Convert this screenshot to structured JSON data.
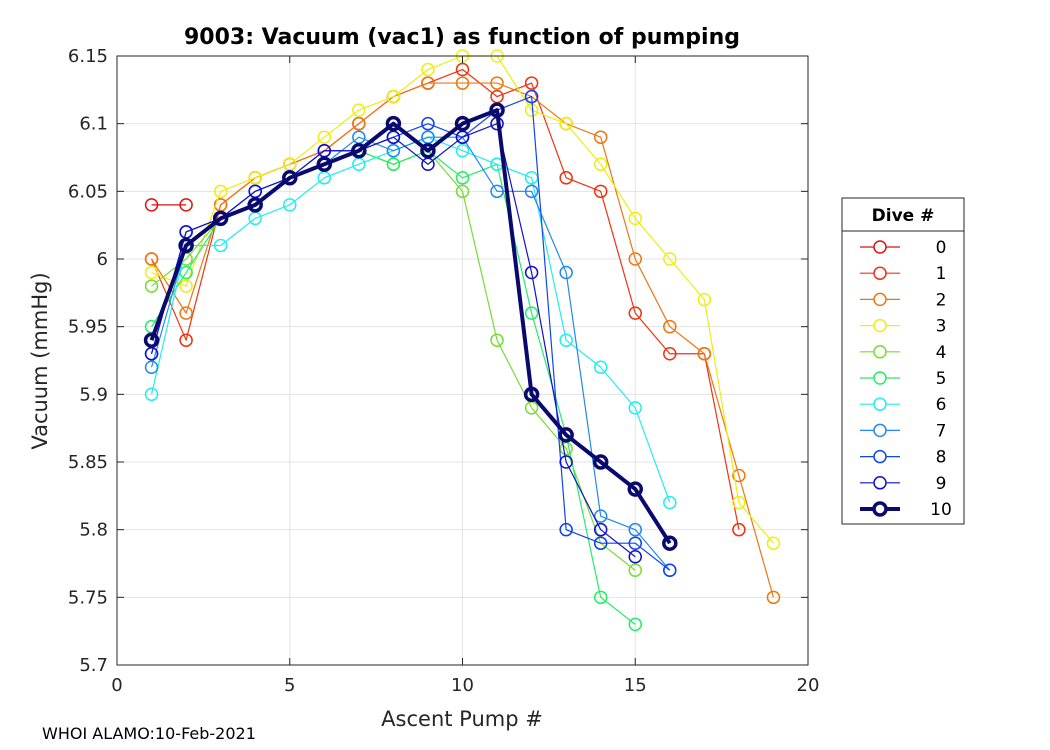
{
  "footer": "WHOI ALAMO:10-Feb-2021",
  "chart_data": {
    "type": "line",
    "title": "9003: Vacuum (vac1) as function of pumping",
    "xlabel": "Ascent Pump #",
    "ylabel": "Vacuum (mmHg)",
    "xlim": [
      0,
      20
    ],
    "ylim": [
      5.7,
      6.15
    ],
    "xticks": [
      0,
      5,
      10,
      15,
      20
    ],
    "xtick_labels": [
      "0",
      "5",
      "10",
      "15",
      "20"
    ],
    "yticks": [
      5.7,
      5.75,
      5.8,
      5.85,
      5.9,
      5.95,
      6.0,
      6.05,
      6.1,
      6.15
    ],
    "ytick_labels": [
      "5.7",
      "5.75",
      "5.8",
      "5.85",
      "5.9",
      "5.95",
      "6",
      "6.05",
      "6.1",
      "6.15"
    ],
    "grid": true,
    "legend_title": "Dive #",
    "legend_position": "outside-right",
    "series": [
      {
        "name": "0",
        "color": "#dd1111",
        "x": [
          1,
          2
        ],
        "y": [
          6.04,
          6.04
        ]
      },
      {
        "name": "1",
        "color": "#ee3311",
        "x": [
          1,
          2,
          3,
          4,
          5,
          6,
          7,
          8,
          9,
          10,
          11,
          12,
          13,
          14,
          15,
          16,
          17,
          18
        ],
        "y": [
          6.0,
          5.94,
          6.04,
          6.06,
          6.07,
          6.08,
          6.1,
          6.12,
          6.13,
          6.14,
          6.12,
          6.13,
          6.06,
          6.05,
          5.96,
          5.93,
          5.93,
          5.8
        ]
      },
      {
        "name": "2",
        "color": "#ee7711",
        "x": [
          1,
          2,
          3,
          4,
          5,
          6,
          7,
          8,
          9,
          10,
          11,
          12,
          13,
          14,
          15,
          16,
          17,
          18,
          19
        ],
        "y": [
          6.0,
          5.96,
          6.04,
          6.06,
          6.07,
          6.08,
          6.1,
          6.12,
          6.13,
          6.13,
          6.13,
          6.12,
          6.1,
          6.09,
          6.0,
          5.95,
          5.93,
          5.84,
          5.75
        ]
      },
      {
        "name": "3",
        "color": "#eeee11",
        "x": [
          1,
          2,
          3,
          4,
          5,
          6,
          7,
          8,
          9,
          10,
          11,
          12,
          13,
          14,
          15,
          16,
          17,
          18,
          19
        ],
        "y": [
          5.99,
          5.98,
          6.05,
          6.06,
          6.07,
          6.09,
          6.11,
          6.12,
          6.14,
          6.15,
          6.15,
          6.11,
          6.1,
          6.07,
          6.03,
          6.0,
          5.97,
          5.82,
          5.79
        ]
      },
      {
        "name": "4",
        "color": "#77dd33",
        "x": [
          1,
          2,
          3,
          4,
          5,
          6,
          7,
          8,
          9,
          10,
          11,
          12,
          13,
          14,
          15
        ],
        "y": [
          5.98,
          6.0,
          6.03,
          6.04,
          6.06,
          6.07,
          6.08,
          6.07,
          6.08,
          6.05,
          5.94,
          5.89,
          5.86,
          5.79,
          5.77
        ]
      },
      {
        "name": "5",
        "color": "#22ee66",
        "x": [
          1,
          2,
          3,
          4,
          5,
          6,
          7,
          8,
          9,
          10,
          11,
          12,
          13,
          14,
          15
        ],
        "y": [
          5.95,
          5.99,
          6.03,
          6.04,
          6.06,
          6.07,
          6.08,
          6.07,
          6.08,
          6.06,
          6.07,
          5.96,
          5.87,
          5.75,
          5.73
        ]
      },
      {
        "name": "6",
        "color": "#22eeee",
        "x": [
          1,
          2,
          3,
          4,
          5,
          6,
          7,
          8,
          9,
          10,
          11,
          12,
          13,
          14,
          15,
          16
        ],
        "y": [
          5.9,
          6.01,
          6.01,
          6.03,
          6.04,
          6.06,
          6.07,
          6.08,
          6.09,
          6.08,
          6.07,
          6.06,
          5.94,
          5.92,
          5.89,
          5.82
        ]
      },
      {
        "name": "7",
        "color": "#2288ee",
        "x": [
          1,
          2,
          3,
          4,
          5,
          6,
          7,
          8,
          9,
          10,
          11,
          12,
          13,
          14,
          15,
          16
        ],
        "y": [
          5.92,
          6.01,
          6.03,
          6.04,
          6.06,
          6.07,
          6.09,
          6.08,
          6.09,
          6.09,
          6.05,
          6.05,
          5.99,
          5.81,
          5.8,
          5.77
        ]
      },
      {
        "name": "8",
        "color": "#1144ee",
        "x": [
          1,
          2,
          3,
          4,
          5,
          6,
          7,
          8,
          9,
          10,
          11,
          12,
          13,
          14,
          15,
          16
        ],
        "y": [
          5.93,
          6.02,
          6.03,
          6.05,
          6.06,
          6.08,
          6.08,
          6.09,
          6.1,
          6.09,
          6.11,
          6.12,
          5.8,
          5.79,
          5.79,
          5.77
        ]
      },
      {
        "name": "9",
        "color": "#1111cc",
        "x": [
          1,
          2,
          3,
          4,
          5,
          6,
          7,
          8,
          9,
          10,
          11,
          12,
          13,
          14,
          15
        ],
        "y": [
          5.93,
          6.02,
          6.03,
          6.05,
          6.06,
          6.08,
          6.08,
          6.09,
          6.07,
          6.09,
          6.1,
          5.99,
          5.85,
          5.8,
          5.78
        ]
      },
      {
        "name": "10",
        "color": "#0a0a6e",
        "bold": true,
        "x": [
          1,
          2,
          3,
          4,
          5,
          6,
          7,
          8,
          9,
          10,
          11,
          12,
          13,
          14,
          15,
          16
        ],
        "y": [
          5.94,
          6.01,
          6.03,
          6.04,
          6.06,
          6.07,
          6.08,
          6.1,
          6.08,
          6.1,
          6.11,
          5.9,
          5.87,
          5.85,
          5.83,
          5.79
        ]
      }
    ]
  }
}
